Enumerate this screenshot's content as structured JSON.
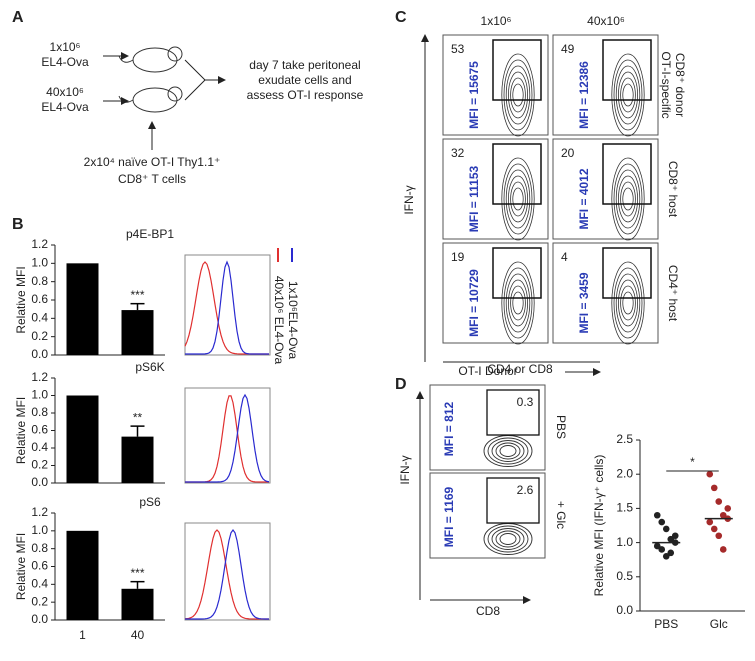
{
  "panel_labels": [
    "A",
    "B",
    "C",
    "D"
  ],
  "panel_a": {
    "dose_low": [
      "1x10⁶",
      "EL4-Ova"
    ],
    "dose_high": [
      "40x10⁶",
      "EL4-Ova"
    ],
    "readout": [
      "day 7 take peritoneal",
      "exudate cells and",
      "assess OT-I response"
    ],
    "transfer": [
      "2x10⁴ naïve OT-I Thy1.1⁺",
      "CD8⁺ T cells"
    ]
  },
  "panel_b": {
    "legend": [
      "1x10⁶EL4-Ova",
      "40x10⁶ EL4-Ova"
    ],
    "legend_colors": [
      "#2a2ad0",
      "#e03030"
    ]
  },
  "chart_data": [
    {
      "type": "bar",
      "title": "p4E-BP1",
      "y_label": "Relative MFI",
      "categories": [
        null,
        null
      ],
      "values": [
        1.0,
        0.49
      ],
      "errors": [
        null,
        0.07
      ],
      "significance": "***",
      "color": "#000000",
      "ylim": [
        0,
        1.2
      ],
      "yticks": [
        {
          "value": 0,
          "label": "0.0"
        },
        0.2,
        0.4,
        0.6,
        0.8,
        {
          "value": 1,
          "label": "1.0"
        },
        1.2
      ]
    },
    {
      "type": "bar",
      "title": "pS6K",
      "y_label": "Relative MFI",
      "categories": [
        null,
        null
      ],
      "values": [
        1.0,
        0.53
      ],
      "errors": [
        null,
        0.12
      ],
      "significance": "**",
      "color": "#000000",
      "ylim": [
        0,
        1.2
      ],
      "yticks": [
        {
          "value": 0,
          "label": "0.0"
        },
        0.2,
        0.4,
        0.6,
        0.8,
        {
          "value": 1,
          "label": "1.0"
        },
        1.2
      ]
    },
    {
      "type": "bar",
      "title": "pS6",
      "y_label": "Relative MFI",
      "categories": [
        "1",
        "40"
      ],
      "values": [
        1.0,
        0.35
      ],
      "errors": [
        null,
        0.08
      ],
      "significance": "***",
      "color": "#000000",
      "ylim": [
        0,
        1.2
      ],
      "yticks": [
        {
          "value": 0,
          "label": "0.0"
        },
        0.2,
        0.4,
        0.6,
        0.8,
        {
          "value": 1,
          "label": "1.0"
        },
        1.2
      ]
    },
    {
      "type": "scatter",
      "y_label": "Relative MFI (IFN-γ⁺ cells)",
      "categories": [
        "PBS",
        "Glc"
      ],
      "series": [
        {
          "color": "#222222",
          "values": [
            1.4,
            1.3,
            1.2,
            1.05,
            1.0,
            0.95,
            0.9,
            0.8,
            0.85,
            1.1
          ]
        },
        {
          "color": "#a52a2a",
          "values": [
            2.0,
            1.8,
            1.6,
            1.4,
            1.35,
            1.3,
            1.2,
            1.1,
            0.9,
            1.5
          ]
        }
      ],
      "means": [
        1.0,
        1.35
      ],
      "significance": "*",
      "ylim": [
        0,
        2.5
      ],
      "yticks": [
        {
          "value": 0,
          "label": "0.0"
        },
        0.5,
        {
          "value": 1,
          "label": "1.0"
        },
        1.5,
        {
          "value": 2,
          "label": "2.0"
        },
        2.5
      ]
    }
  ],
  "panel_c": {
    "columns": [
      "1x10⁶",
      "40x10⁶"
    ],
    "rows": [
      [
        "OT-I-specific",
        "CD8⁺ donor"
      ],
      [
        "CD8⁺ host"
      ],
      [
        "CD4⁺ host"
      ]
    ],
    "cells": [
      [
        {
          "percent": 53,
          "mfi": "MFI = 15675"
        },
        {
          "percent": 49,
          "mfi": "MFI = 12386"
        }
      ],
      [
        {
          "percent": 32,
          "mfi": "MFI = 11153"
        },
        {
          "percent": 20,
          "mfi": "MFI = 4012"
        }
      ],
      [
        {
          "percent": 19,
          "mfi": "MFI = 10729"
        },
        {
          "percent": 4,
          "mfi": "MFI = 3459"
        }
      ]
    ],
    "y_axis": "IFN-γ",
    "x_axis": "CD4 or CD8"
  },
  "panel_d": {
    "title": "OT-I Donor",
    "cells": [
      {
        "mfi": "MFI = 812",
        "percent": 0.3,
        "condition": "PBS"
      },
      {
        "mfi": "MFI = 1169",
        "percent": 2.6,
        "condition": "+ Glc"
      }
    ],
    "y_axis": "IFN-γ",
    "x_axis": "CD8"
  }
}
